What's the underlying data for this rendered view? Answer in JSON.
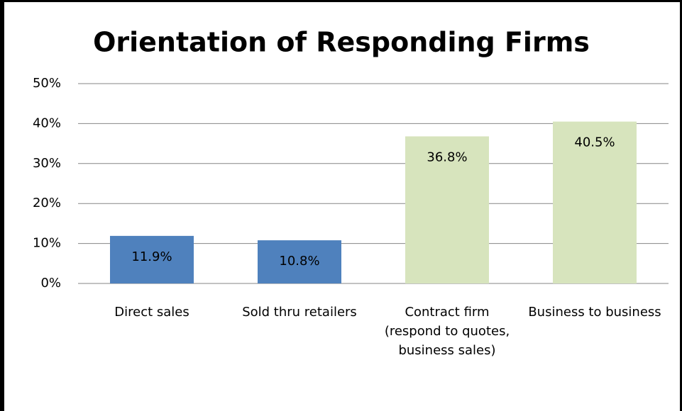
{
  "chart_data": {
    "type": "bar",
    "title": "Orientation of Responding Firms",
    "categories": [
      "Direct sales",
      "Sold thru retailers",
      "Contract firm (respond to quotes, business sales)",
      "Business to business"
    ],
    "values": [
      11.9,
      10.8,
      36.8,
      40.5
    ],
    "value_labels": [
      "11.9%",
      "10.8%",
      "36.8%",
      "40.5%"
    ],
    "colors": [
      "#4f81bd",
      "#4f81bd",
      "#d7e4bd",
      "#d7e4bd"
    ],
    "ylim": [
      0,
      50
    ],
    "yticks": [
      {
        "value": 0,
        "label": "0%"
      },
      {
        "value": 10,
        "label": "10%"
      },
      {
        "value": 20,
        "label": "20%"
      },
      {
        "value": 30,
        "label": "30%"
      },
      {
        "value": 40,
        "label": "40%"
      },
      {
        "value": 50,
        "label": "50%"
      }
    ],
    "grid": true
  }
}
